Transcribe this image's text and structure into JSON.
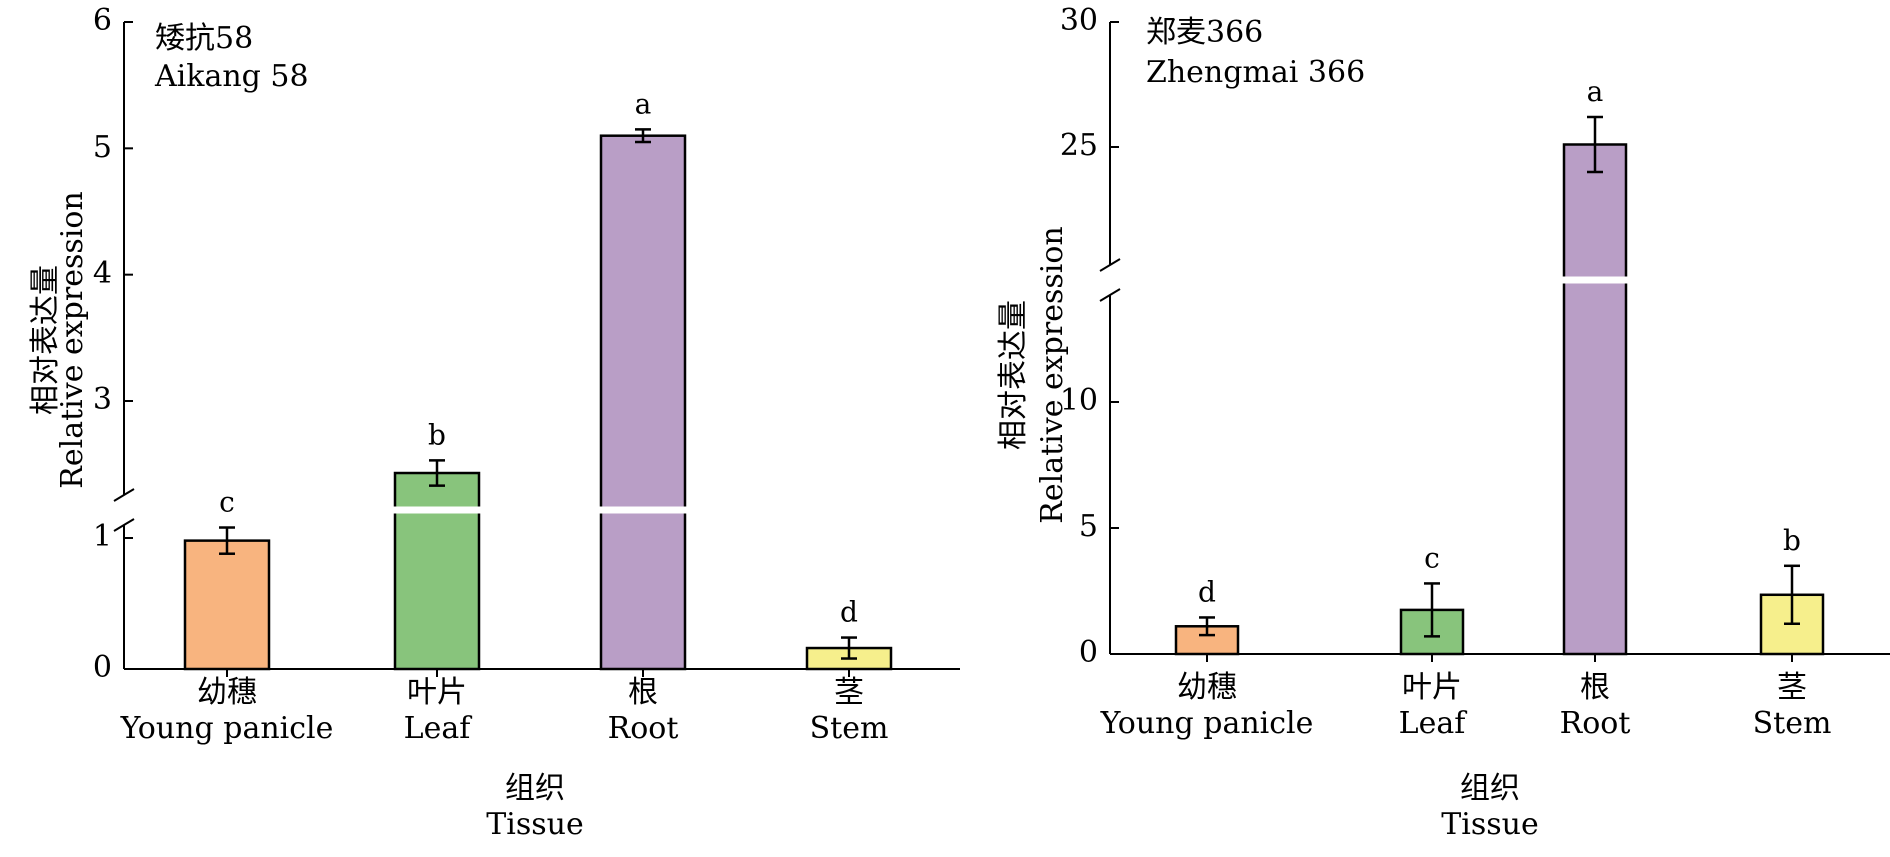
{
  "figure_colors": {
    "young_panicle": "#F8B47F",
    "leaf": "#88C47C",
    "root": "#B99EC6",
    "stem": "#F6EF8C",
    "axis": "#000000"
  },
  "chart_data": [
    {
      "type": "bar",
      "title": "矮抗58",
      "title_en": "Aikang 58",
      "xlabel": "组织",
      "xlabel_en": "Tissue",
      "ylabel": "相对表达量",
      "ylabel_en": "Relative expression",
      "categories": [
        {
          "zh": "幼穗",
          "en": "Young panicle"
        },
        {
          "zh": "叶片",
          "en": "Leaf"
        },
        {
          "zh": "根",
          "en": "Root"
        },
        {
          "zh": "茎",
          "en": "Stem"
        }
      ],
      "values": [
        0.98,
        2.43,
        5.1,
        0.16
      ],
      "errors": [
        0.1,
        0.1,
        0.05,
        0.08
      ],
      "letters": [
        "c",
        "b",
        "a",
        "d"
      ],
      "axis_break": [
        1.12,
        2.1
      ],
      "ylim": [
        0,
        6
      ],
      "yticks_low": [
        "0",
        "1"
      ],
      "yticks_high": [
        "3",
        "4",
        "5",
        "6"
      ],
      "grid": false,
      "legend": "none"
    },
    {
      "type": "bar",
      "title": "郑麦366",
      "title_en": "Zhengmai 366",
      "xlabel": "组织",
      "xlabel_en": "Tissue",
      "ylabel": "相对表达量",
      "ylabel_en": "Relative expression",
      "categories": [
        {
          "zh": "幼穗",
          "en": "Young panicle"
        },
        {
          "zh": "叶片",
          "en": "Leaf"
        },
        {
          "zh": "根",
          "en": "Root"
        },
        {
          "zh": "茎",
          "en": "Stem"
        }
      ],
      "values": [
        1.1,
        1.75,
        25.1,
        2.35
      ],
      "errors": [
        0.35,
        1.05,
        1.1,
        1.15
      ],
      "letters": [
        "d",
        "c",
        "a",
        "b"
      ],
      "axis_break": [
        15,
        20
      ],
      "ylim": [
        0,
        30
      ],
      "yticks_low": [
        "0",
        "5",
        "10"
      ],
      "yticks_high": [
        "25",
        "30"
      ],
      "grid": false,
      "legend": "none"
    }
  ]
}
